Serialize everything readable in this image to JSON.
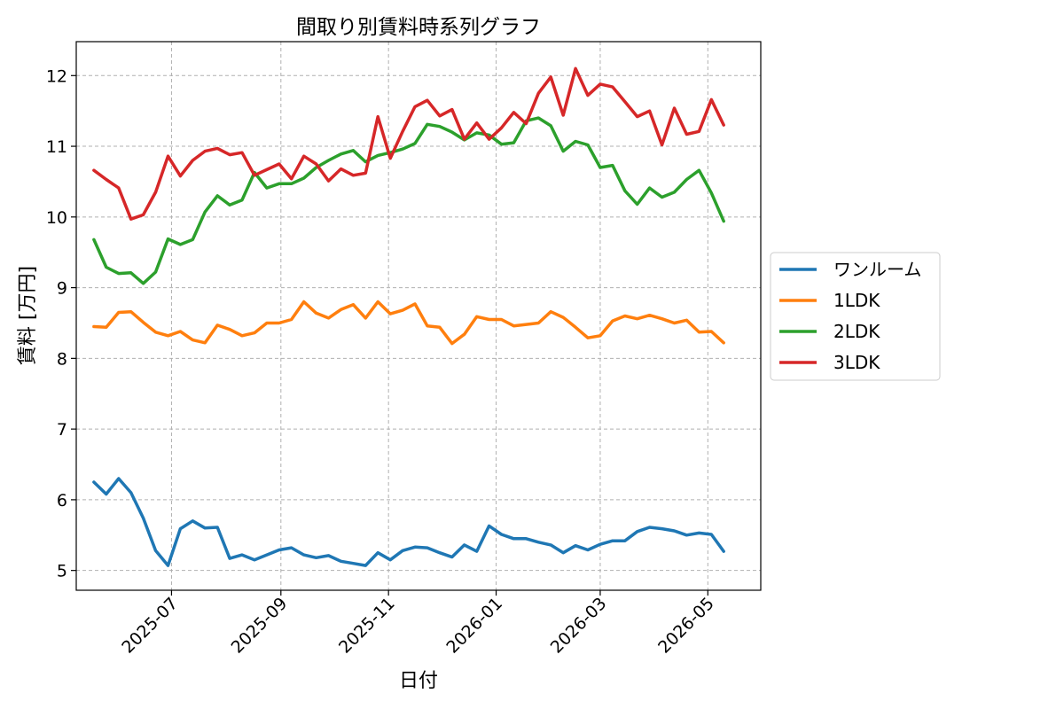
{
  "chart_data": {
    "type": "line",
    "title": "間取り別賃料時系列グラフ",
    "xlabel": "日付",
    "ylabel": "賃料 [万円]",
    "x_ticks": [
      "2025-07",
      "2025-09",
      "2025-11",
      "2026-01",
      "2026-03",
      "2026-05"
    ],
    "x_tick_dates": [
      "2025-07-01",
      "2025-09-01",
      "2025-11-01",
      "2026-01-01",
      "2026-03-01",
      "2026-05-01"
    ],
    "xlim": [
      "2025-05-08",
      "2026-05-31"
    ],
    "y_ticks": [
      5,
      6,
      7,
      8,
      9,
      10,
      11,
      12
    ],
    "ylim": [
      4.72,
      12.48
    ],
    "grid": true,
    "legend_position": "center-right-outside",
    "x": [
      "2025-05-18",
      "2025-05-25",
      "2025-06-01",
      "2025-06-08",
      "2025-06-15",
      "2025-06-22",
      "2025-06-29",
      "2025-07-06",
      "2025-07-13",
      "2025-07-20",
      "2025-07-27",
      "2025-08-03",
      "2025-08-10",
      "2025-08-17",
      "2025-08-24",
      "2025-08-31",
      "2025-09-07",
      "2025-09-14",
      "2025-09-21",
      "2025-09-28",
      "2025-10-05",
      "2025-10-12",
      "2025-10-19",
      "2025-10-26",
      "2025-11-02",
      "2025-11-09",
      "2025-11-16",
      "2025-11-23",
      "2025-11-30",
      "2025-12-07",
      "2025-12-14",
      "2025-12-21",
      "2025-12-28",
      "2026-01-04",
      "2026-01-11",
      "2026-01-18",
      "2026-01-25",
      "2026-02-01",
      "2026-02-08",
      "2026-02-15",
      "2026-02-22",
      "2026-03-01",
      "2026-03-08",
      "2026-03-15",
      "2026-03-22",
      "2026-03-29",
      "2026-04-05",
      "2026-04-12",
      "2026-04-19",
      "2026-04-26",
      "2026-05-03",
      "2026-05-10",
      "2026-05-17"
    ],
    "series": [
      {
        "name": "ワンルーム",
        "color": "#1f77b4",
        "values": [
          6.25,
          6.08,
          6.3,
          6.1,
          5.74,
          5.28,
          5.07,
          5.59,
          5.7,
          5.6,
          5.61,
          5.17,
          5.22,
          5.15,
          5.22,
          5.29,
          5.32,
          5.22,
          5.18,
          5.21,
          5.13,
          5.1,
          5.07,
          5.25,
          5.15,
          5.28,
          5.33,
          5.32,
          5.25,
          5.19,
          5.36,
          5.27,
          5.63,
          5.51,
          5.45,
          5.45,
          5.4,
          5.36,
          5.25,
          5.35,
          5.29,
          5.37,
          5.42,
          5.42,
          5.55,
          5.61,
          5.59,
          5.56,
          5.5,
          5.53,
          5.51,
          5.27,
          null
        ]
      },
      {
        "name": "1LDK",
        "color": "#ff7f0e",
        "values": [
          8.45,
          8.44,
          8.65,
          8.66,
          8.51,
          8.37,
          8.32,
          8.38,
          8.26,
          8.22,
          8.47,
          8.41,
          8.32,
          8.36,
          8.5,
          8.5,
          8.55,
          8.8,
          8.64,
          8.57,
          8.69,
          8.76,
          8.57,
          8.8,
          8.63,
          8.68,
          8.77,
          8.46,
          8.44,
          8.21,
          8.34,
          8.59,
          8.55,
          8.55,
          8.46,
          8.48,
          8.5,
          8.66,
          8.58,
          8.44,
          8.29,
          8.32,
          8.53,
          8.6,
          8.56,
          8.61,
          8.56,
          8.5,
          8.54,
          8.37,
          8.38,
          8.22,
          null
        ]
      },
      {
        "name": "2LDK",
        "color": "#2ca02c",
        "values": [
          9.68,
          9.29,
          9.2,
          9.21,
          9.06,
          9.22,
          9.69,
          9.61,
          9.68,
          10.07,
          10.3,
          10.17,
          10.24,
          10.63,
          10.41,
          10.47,
          10.47,
          10.55,
          10.7,
          10.8,
          10.89,
          10.94,
          10.78,
          10.87,
          10.91,
          10.96,
          11.04,
          11.31,
          11.28,
          11.2,
          11.09,
          11.19,
          11.16,
          11.03,
          11.05,
          11.36,
          11.4,
          11.29,
          10.93,
          11.07,
          11.02,
          10.7,
          10.73,
          10.37,
          10.18,
          10.41,
          10.28,
          10.35,
          10.53,
          10.66,
          10.34,
          9.94,
          null
        ]
      },
      {
        "name": "3LDK",
        "color": "#d62728",
        "values": [
          10.66,
          10.53,
          10.41,
          9.97,
          10.03,
          10.35,
          10.86,
          10.58,
          10.8,
          10.93,
          10.97,
          10.88,
          10.91,
          10.59,
          10.67,
          10.75,
          10.54,
          10.86,
          10.75,
          10.51,
          10.68,
          10.59,
          10.62,
          11.42,
          10.83,
          11.21,
          11.56,
          11.65,
          11.43,
          11.52,
          11.1,
          11.33,
          11.1,
          11.26,
          11.48,
          11.32,
          11.75,
          11.98,
          11.44,
          12.1,
          11.72,
          11.88,
          11.84,
          11.63,
          11.42,
          11.5,
          11.02,
          11.54,
          11.17,
          11.21,
          11.66,
          11.3,
          null
        ]
      }
    ]
  }
}
